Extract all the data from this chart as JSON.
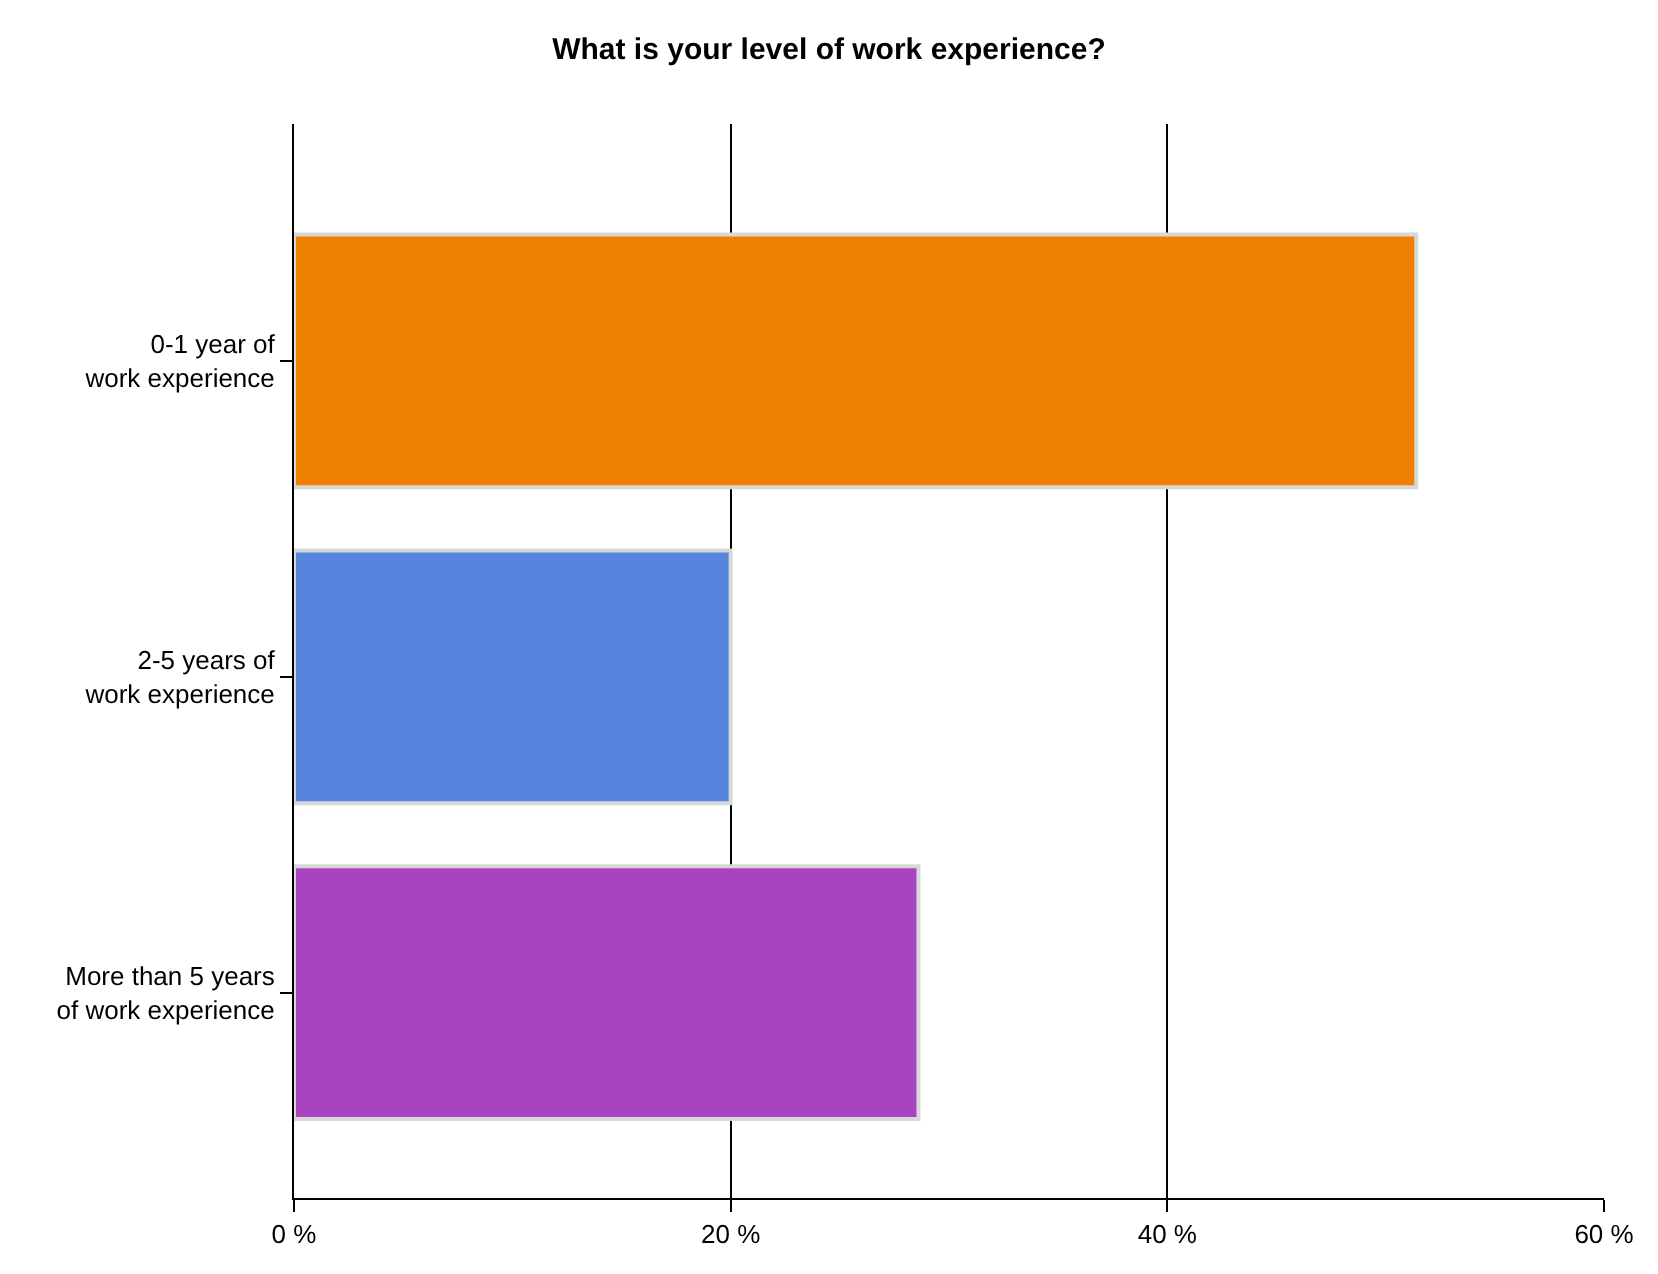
{
  "chart_data": {
    "type": "bar",
    "orientation": "horizontal",
    "title": "What is your level of work experience?",
    "categories": [
      "0-1 year of\nwork experience",
      "2-5 years of\nwork experience",
      "More than 5 years\nof work experience"
    ],
    "values": [
      51.4,
      20.0,
      28.6
    ],
    "colors": [
      "#f08000",
      "#5585dc",
      "#a844c0"
    ],
    "xlim": [
      0,
      60
    ],
    "xticks": [
      {
        "value": 0,
        "label": "0 %"
      },
      {
        "value": 20,
        "label": "20 %"
      },
      {
        "value": 40,
        "label": "40 %"
      },
      {
        "value": 60,
        "label": "60 %"
      }
    ],
    "grid": "x"
  }
}
